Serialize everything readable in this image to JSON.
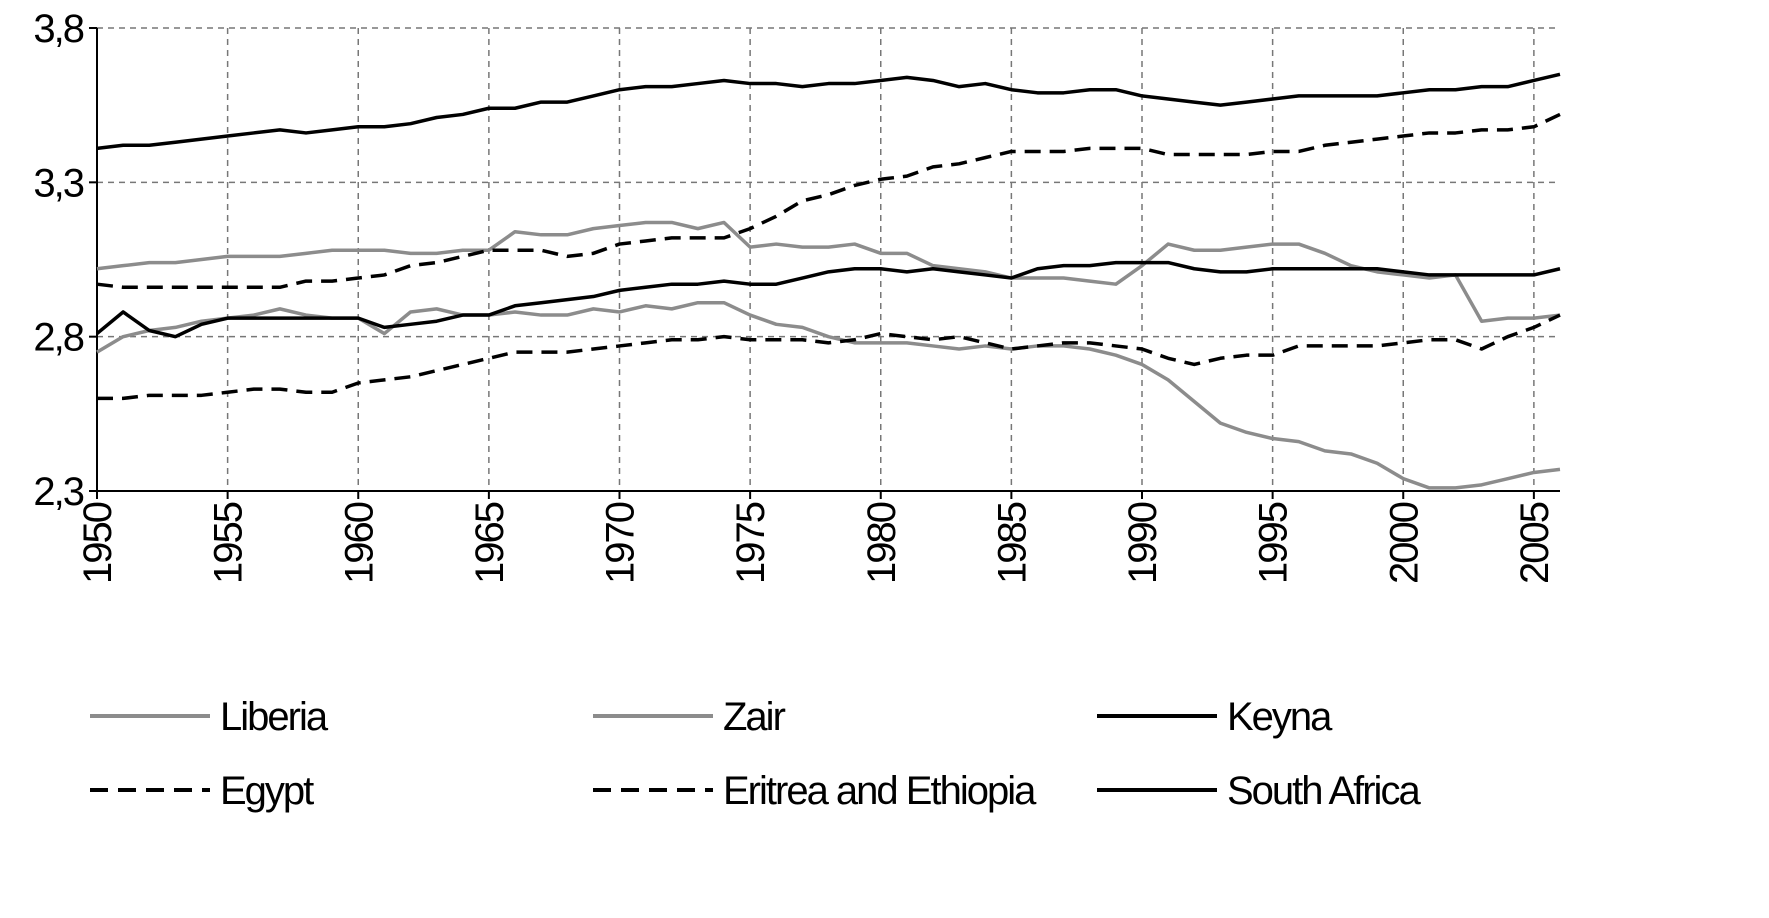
{
  "chart_data": {
    "type": "line",
    "x": [
      1950,
      1951,
      1952,
      1953,
      1954,
      1955,
      1956,
      1957,
      1958,
      1959,
      1960,
      1961,
      1962,
      1963,
      1964,
      1965,
      1966,
      1967,
      1968,
      1969,
      1970,
      1971,
      1972,
      1973,
      1974,
      1975,
      1976,
      1977,
      1978,
      1979,
      1980,
      1981,
      1982,
      1983,
      1984,
      1985,
      1986,
      1987,
      1988,
      1989,
      1990,
      1991,
      1992,
      1993,
      1994,
      1995,
      1996,
      1997,
      1998,
      1999,
      2000,
      2001,
      2002,
      2003,
      2004,
      2005,
      2006
    ],
    "xlim": [
      1950,
      2006
    ],
    "xticks": [
      1950,
      1955,
      1960,
      1965,
      1970,
      1975,
      1980,
      1985,
      1990,
      1995,
      2000,
      2005
    ],
    "ylim": [
      2.3,
      3.8
    ],
    "yticks": [
      {
        "value": 2.3,
        "label": "2,3"
      },
      {
        "value": 2.8,
        "label": "2,8"
      },
      {
        "value": 3.3,
        "label": "3,3"
      },
      {
        "value": 3.8,
        "label": "3,8"
      }
    ],
    "grid": true,
    "legend": "bottom",
    "series": [
      {
        "name": "Liberia",
        "color": "#8c8c8c",
        "dashed": false,
        "values": [
          3.02,
          3.03,
          3.04,
          3.04,
          3.05,
          3.06,
          3.06,
          3.06,
          3.07,
          3.08,
          3.08,
          3.08,
          3.07,
          3.07,
          3.08,
          3.08,
          3.14,
          3.13,
          3.13,
          3.15,
          3.16,
          3.17,
          3.17,
          3.15,
          3.17,
          3.09,
          3.1,
          3.09,
          3.09,
          3.1,
          3.07,
          3.07,
          3.03,
          3.02,
          3.01,
          2.99,
          2.99,
          2.99,
          2.98,
          2.97,
          3.03,
          3.1,
          3.08,
          3.08,
          3.09,
          3.1,
          3.1,
          3.07,
          3.03,
          3.01,
          3.0,
          2.99,
          3.0,
          2.85,
          2.86,
          2.86,
          2.87
        ]
      },
      {
        "name": "Zair",
        "color": "#8c8c8c",
        "dashed": false,
        "values": [
          2.75,
          2.8,
          2.82,
          2.83,
          2.85,
          2.86,
          2.87,
          2.89,
          2.87,
          2.86,
          2.86,
          2.81,
          2.88,
          2.89,
          2.87,
          2.87,
          2.88,
          2.87,
          2.87,
          2.89,
          2.88,
          2.9,
          2.89,
          2.91,
          2.91,
          2.87,
          2.84,
          2.83,
          2.8,
          2.78,
          2.78,
          2.78,
          2.77,
          2.76,
          2.77,
          2.76,
          2.77,
          2.77,
          2.76,
          2.74,
          2.71,
          2.66,
          2.59,
          2.52,
          2.49,
          2.47,
          2.46,
          2.43,
          2.42,
          2.39,
          2.34,
          2.31,
          2.31,
          2.32,
          2.34,
          2.36,
          2.37
        ]
      },
      {
        "name": "Keyna",
        "color": "#000000",
        "dashed": false,
        "values": [
          2.81,
          2.88,
          2.82,
          2.8,
          2.84,
          2.86,
          2.86,
          2.86,
          2.86,
          2.86,
          2.86,
          2.83,
          2.84,
          2.85,
          2.87,
          2.87,
          2.9,
          2.91,
          2.92,
          2.93,
          2.95,
          2.96,
          2.97,
          2.97,
          2.98,
          2.97,
          2.97,
          2.99,
          3.01,
          3.02,
          3.02,
          3.01,
          3.02,
          3.01,
          3.0,
          2.99,
          3.02,
          3.03,
          3.03,
          3.04,
          3.04,
          3.04,
          3.02,
          3.01,
          3.01,
          3.02,
          3.02,
          3.02,
          3.02,
          3.02,
          3.01,
          3.0,
          3.0,
          3.0,
          3.0,
          3.0,
          3.02
        ]
      },
      {
        "name": "Egypt",
        "color": "#000000",
        "dashed": true,
        "values": [
          2.6,
          2.6,
          2.61,
          2.61,
          2.61,
          2.62,
          2.63,
          2.63,
          2.62,
          2.62,
          2.65,
          2.66,
          2.67,
          2.69,
          2.71,
          2.73,
          2.75,
          2.75,
          2.75,
          2.76,
          2.77,
          2.78,
          2.79,
          2.79,
          2.8,
          2.79,
          2.79,
          2.79,
          2.78,
          2.79,
          2.81,
          2.8,
          2.79,
          2.8,
          2.78,
          2.76,
          2.77,
          2.78,
          2.78,
          2.77,
          2.76,
          2.73,
          2.71,
          2.73,
          2.74,
          2.74,
          2.77,
          2.77,
          2.77,
          2.77,
          2.78,
          2.79,
          2.79,
          2.76,
          2.8,
          2.83,
          2.87
        ]
      },
      {
        "name": "Eritrea and Ethiopia",
        "color": "#000000",
        "dashed": true,
        "values": [
          2.97,
          2.96,
          2.96,
          2.96,
          2.96,
          2.96,
          2.96,
          2.96,
          2.98,
          2.98,
          2.99,
          3.0,
          3.03,
          3.04,
          3.06,
          3.08,
          3.08,
          3.08,
          3.06,
          3.07,
          3.1,
          3.11,
          3.12,
          3.12,
          3.12,
          3.15,
          3.19,
          3.24,
          3.26,
          3.29,
          3.31,
          3.32,
          3.35,
          3.36,
          3.38,
          3.4,
          3.4,
          3.4,
          3.41,
          3.41,
          3.41,
          3.39,
          3.39,
          3.39,
          3.39,
          3.4,
          3.4,
          3.42,
          3.43,
          3.44,
          3.45,
          3.46,
          3.46,
          3.47,
          3.47,
          3.48,
          3.52
        ]
      },
      {
        "name": "South Africa",
        "color": "#000000",
        "dashed": false,
        "values": [
          3.41,
          3.42,
          3.42,
          3.43,
          3.44,
          3.45,
          3.46,
          3.47,
          3.46,
          3.47,
          3.48,
          3.48,
          3.49,
          3.51,
          3.52,
          3.54,
          3.54,
          3.56,
          3.56,
          3.58,
          3.6,
          3.61,
          3.61,
          3.62,
          3.63,
          3.62,
          3.62,
          3.61,
          3.62,
          3.62,
          3.63,
          3.64,
          3.63,
          3.61,
          3.62,
          3.6,
          3.59,
          3.59,
          3.6,
          3.6,
          3.58,
          3.57,
          3.56,
          3.55,
          3.56,
          3.57,
          3.58,
          3.58,
          3.58,
          3.58,
          3.59,
          3.6,
          3.6,
          3.61,
          3.61,
          3.63,
          3.65
        ]
      }
    ]
  }
}
